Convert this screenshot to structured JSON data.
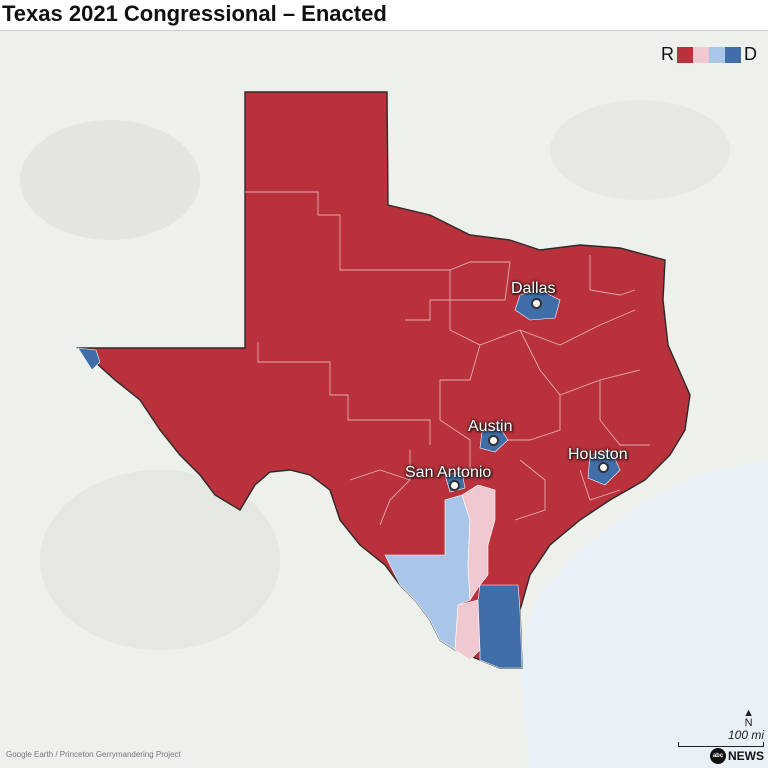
{
  "title": "Texas 2021 Congressional – Enacted",
  "legend": {
    "left_label": "R",
    "right_label": "D",
    "colors": [
      "#b8313b",
      "#f0c8cf",
      "#a9c6e8",
      "#3f6ea8"
    ]
  },
  "cities": [
    {
      "name": "Dallas"
    },
    {
      "name": "Austin"
    },
    {
      "name": "San Antonio"
    },
    {
      "name": "Houston"
    }
  ],
  "scale": {
    "label": "100 mi",
    "north_label": "N"
  },
  "credit": "Google Earth / Princeton Gerrymandering Project",
  "logo": {
    "badge": "abc",
    "text": "NEWS"
  },
  "colors": {
    "land": "#eef0ec",
    "water": "#e9f0f7",
    "district_red": "#b8313b",
    "district_light_red": "#f0c8cf",
    "district_light_blue": "#a9c6e8",
    "district_blue": "#3f6ea8"
  }
}
